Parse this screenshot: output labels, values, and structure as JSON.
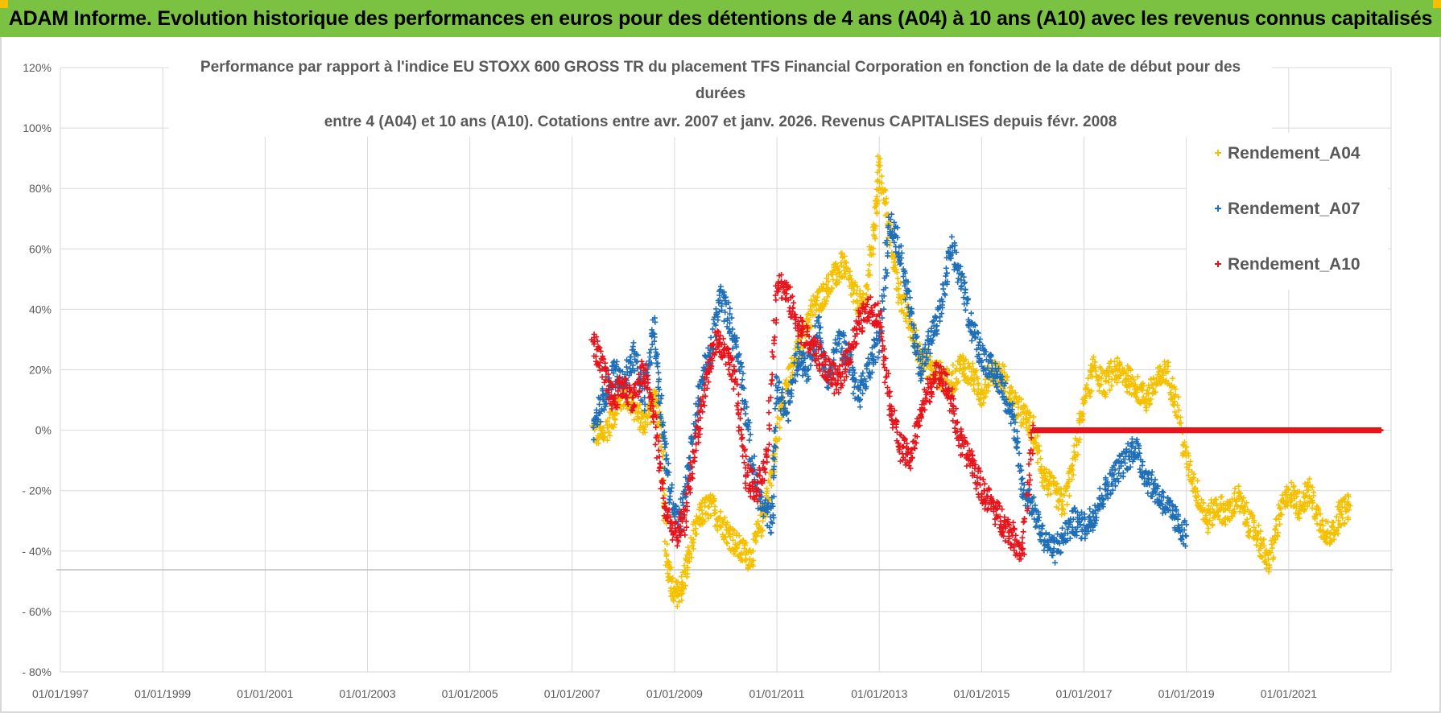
{
  "banner": {
    "title": "ADAM Informe. Evolution historique des performances en euros pour des détentions de 4 ans (A04) à 10 ans (A10) avec les revenus connus capitalisés"
  },
  "colors": {
    "banner": "#7cc242",
    "a04": "#f5c000",
    "a07": "#1f6fb8",
    "a10": "#e8141c",
    "grid": "#d9d9d9",
    "text": "#595959"
  },
  "chart_data": {
    "type": "scatter",
    "title_lines": [
      "Performance par rapport à l'indice EU STOXX 600 GROSS TR  du placement TFS Financial Corporation en fonction de la date de début pour des",
      "durées",
      "entre 4 (A04) et 10 ans (A10).  Cotations entre avr. 2007 et janv. 2026. Revenus CAPITALISES  depuis févr. 2008"
    ],
    "x_tick_labels": [
      "01/01/1997",
      "01/01/1999",
      "01/01/2001",
      "01/01/2003",
      "01/01/2005",
      "01/01/2007",
      "01/01/2009",
      "01/01/2011",
      "01/01/2013",
      "01/01/2015",
      "01/01/2017",
      "01/01/2019",
      "01/01/2021"
    ],
    "xlim": [
      1997.0,
      2023.0
    ],
    "y_tick_labels": [
      "120%",
      "100%",
      "80%",
      "60%",
      "40%",
      "20%",
      "0%",
      "- 20%",
      "- 40%",
      "- 60%",
      "- 80%"
    ],
    "ylim": [
      -80,
      120
    ],
    "series": [
      {
        "name": "Rendement_A04",
        "color": "#f5c000",
        "x": [
          2007.4,
          2007.6,
          2007.8,
          2008.0,
          2008.2,
          2008.4,
          2008.6,
          2008.75,
          2008.85,
          2009.0,
          2009.15,
          2009.3,
          2009.5,
          2009.7,
          2009.9,
          2010.1,
          2010.3,
          2010.5,
          2010.7,
          2010.9,
          2011.1,
          2011.3,
          2011.5,
          2011.7,
          2011.9,
          2012.1,
          2012.3,
          2012.5,
          2012.7,
          2012.9,
          2013.0,
          2013.2,
          2013.4,
          2013.6,
          2013.8,
          2014.0,
          2014.2,
          2014.4,
          2014.6,
          2014.8,
          2015.0,
          2015.2,
          2015.4,
          2015.6,
          2015.8,
          2016.0,
          2016.2,
          2016.4,
          2016.6,
          2016.8,
          2017.0,
          2017.2,
          2017.4,
          2017.6,
          2017.8,
          2018.0,
          2018.2,
          2018.4,
          2018.6,
          2018.8,
          2019.0,
          2019.2,
          2019.4,
          2019.6,
          2019.8,
          2020.0,
          2020.2,
          2020.4,
          2020.6,
          2020.8,
          2021.0,
          2021.2,
          2021.4,
          2021.6,
          2021.8,
          2022.0,
          2022.2
        ],
        "y": [
          0,
          -2,
          5,
          12,
          8,
          2,
          10,
          0,
          -45,
          -55,
          -52,
          -40,
          -28,
          -25,
          -30,
          -35,
          -40,
          -42,
          -30,
          -15,
          10,
          20,
          30,
          40,
          45,
          50,
          55,
          45,
          40,
          65,
          88,
          65,
          45,
          35,
          25,
          20,
          18,
          15,
          22,
          18,
          12,
          20,
          18,
          10,
          5,
          0,
          -15,
          -20,
          -25,
          -10,
          10,
          20,
          15,
          20,
          18,
          15,
          10,
          15,
          20,
          10,
          -10,
          -20,
          -30,
          -25,
          -28,
          -22,
          -30,
          -35,
          -45,
          -30,
          -20,
          -25,
          -20,
          -30,
          -35,
          -28,
          -25
        ]
      },
      {
        "name": "Rendement_A07",
        "color": "#1f6fb8",
        "x": [
          2007.4,
          2007.6,
          2007.8,
          2008.0,
          2008.2,
          2008.4,
          2008.6,
          2008.75,
          2008.9,
          2009.1,
          2009.3,
          2009.5,
          2009.7,
          2009.9,
          2010.1,
          2010.3,
          2010.5,
          2010.7,
          2010.9,
          2011.0,
          2011.2,
          2011.4,
          2011.6,
          2011.8,
          2012.0,
          2012.2,
          2012.4,
          2012.6,
          2012.8,
          2013.0,
          2013.2,
          2013.4,
          2013.6,
          2013.8,
          2014.0,
          2014.2,
          2014.4,
          2014.6,
          2014.8,
          2015.0,
          2015.2,
          2015.4,
          2015.6,
          2015.8,
          2016.0,
          2016.2,
          2016.4,
          2016.6,
          2016.8,
          2017.0,
          2017.2,
          2017.4,
          2017.6,
          2017.8,
          2018.0,
          2018.2,
          2018.4,
          2018.6,
          2018.8,
          2019.0
        ],
        "y": [
          0,
          10,
          20,
          15,
          25,
          10,
          35,
          5,
          -20,
          -30,
          -10,
          15,
          25,
          45,
          35,
          20,
          -10,
          -25,
          -30,
          15,
          5,
          25,
          20,
          35,
          15,
          30,
          25,
          10,
          20,
          30,
          70,
          60,
          40,
          20,
          30,
          40,
          60,
          50,
          35,
          25,
          20,
          15,
          5,
          -20,
          -25,
          -35,
          -40,
          -35,
          -30,
          -32,
          -28,
          -20,
          -15,
          -10,
          -5,
          -15,
          -20,
          -25,
          -30,
          -35
        ]
      },
      {
        "name": "Rendement_A10",
        "color": "#e8141c",
        "x": [
          2007.4,
          2007.6,
          2007.8,
          2008.0,
          2008.2,
          2008.4,
          2008.6,
          2008.8,
          2009.0,
          2009.2,
          2009.4,
          2009.6,
          2009.8,
          2010.0,
          2010.2,
          2010.4,
          2010.6,
          2010.8,
          2011.0,
          2011.2,
          2011.4,
          2011.6,
          2011.8,
          2012.0,
          2012.2,
          2012.4,
          2012.6,
          2012.8,
          2013.0,
          2013.2,
          2013.4,
          2013.6,
          2013.8,
          2014.0,
          2014.2,
          2014.4,
          2014.6,
          2014.8,
          2015.0,
          2015.2,
          2015.4,
          2015.6,
          2015.8,
          2016.0,
          2016.2,
          2016.4,
          2016.6,
          2016.8,
          2017.0,
          2017.2,
          2017.4,
          2017.6,
          2017.8,
          2018.0,
          2018.2,
          2018.4,
          2018.6,
          2018.8,
          2019.0,
          2019.2,
          2019.4,
          2019.6,
          2019.8,
          2020.0,
          2020.2,
          2020.4,
          2020.6,
          2020.8,
          2021.0,
          2021.2,
          2021.4,
          2021.6,
          2021.8,
          2022.0,
          2022.2,
          2022.4,
          2022.6,
          2022.8
        ],
        "y": [
          30,
          20,
          10,
          15,
          10,
          20,
          5,
          -25,
          -35,
          -30,
          -5,
          15,
          30,
          25,
          15,
          -15,
          -20,
          -10,
          50,
          45,
          35,
          30,
          25,
          20,
          15,
          25,
          35,
          40,
          38,
          10,
          -5,
          -10,
          5,
          15,
          20,
          10,
          -5,
          -10,
          -20,
          -25,
          -30,
          -35,
          -40,
          0,
          0,
          0,
          0,
          0,
          0,
          0,
          0,
          0,
          0,
          0,
          0,
          0,
          0,
          0,
          0,
          0,
          0,
          0,
          0,
          0,
          0,
          0,
          0,
          0,
          0,
          0,
          0,
          0,
          0,
          0,
          0,
          0,
          0,
          0
        ]
      }
    ],
    "legend": [
      "Rendement_A04",
      "Rendement_A07",
      "Rendement_A10"
    ],
    "legend_position": "top-right",
    "grid": true,
    "marker": "+"
  }
}
